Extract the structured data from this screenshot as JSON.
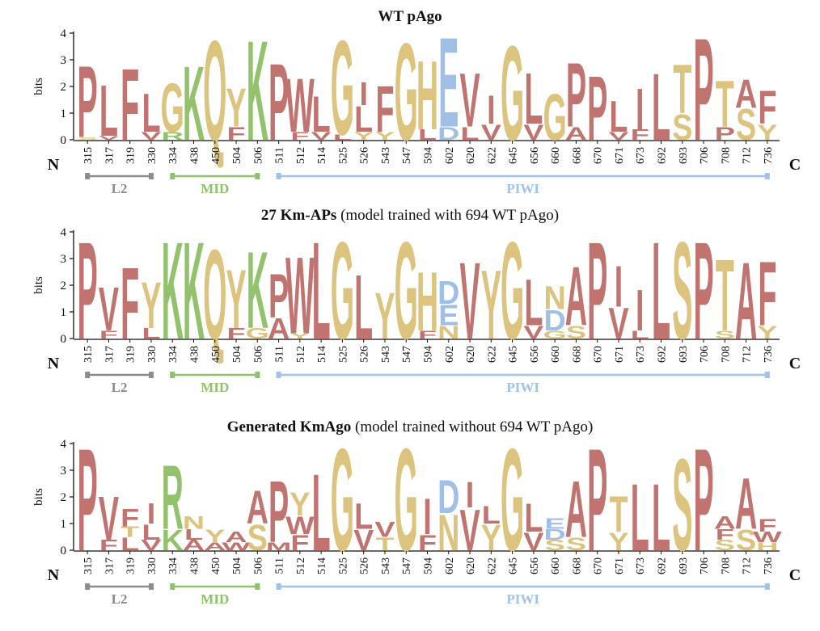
{
  "colors": {
    "P": "#c0736f",
    "L": "#c0736f",
    "F": "#c0736f",
    "V": "#c0736f",
    "I": "#c0736f",
    "W": "#c0736f",
    "A": "#c0736f",
    "M": "#c0736f",
    "G": "#dcc37e",
    "Q": "#dcc37e",
    "Y": "#dcc37e",
    "S": "#dcc37e",
    "T": "#dcc37e",
    "N": "#dcc37e",
    "H": "#dcc37e",
    "C": "#dcc37e",
    "K": "#93c26c",
    "R": "#93c26c",
    "E": "#9fbfe6",
    "D": "#9fbfe6",
    "domain_L2": "#8c8c8c",
    "domain_MID": "#8fc26a",
    "domain_PIWI": "#9fc3ea"
  },
  "positions": [
    "315",
    "317",
    "319",
    "330",
    "334",
    "438",
    "450",
    "504",
    "506",
    "511",
    "512",
    "514",
    "525",
    "526",
    "543",
    "547",
    "594",
    "602",
    "620",
    "622",
    "645",
    "656",
    "660",
    "668",
    "670",
    "671",
    "673",
    "692",
    "693",
    "706",
    "708",
    "712",
    "736"
  ],
  "axis": {
    "ylabel": "bits",
    "yticks": [
      "0",
      "1",
      "2",
      "3",
      "4"
    ],
    "n_label": "N",
    "c_label": "C"
  },
  "domains": [
    {
      "name": "L2",
      "from": 0,
      "to": 3
    },
    {
      "name": "MID",
      "from": 4,
      "to": 8
    },
    {
      "name": "PIWI",
      "from": 9,
      "to": 32
    }
  ],
  "panels": [
    {
      "title_bold": "WT pAgo",
      "title_rest": "",
      "stacks": [
        [
          [
            "S",
            0.1
          ],
          [
            "P",
            2.8
          ]
        ],
        [
          [
            "V",
            0.15
          ],
          [
            "L",
            2.0
          ]
        ],
        [
          [
            "F",
            2.8
          ]
        ],
        [
          [
            "V",
            0.3
          ],
          [
            "L",
            1.5
          ]
        ],
        [
          [
            "R",
            0.3
          ],
          [
            "G",
            1.9
          ]
        ],
        [
          [
            "K",
            2.9
          ]
        ],
        [
          [
            "Q",
            3.9
          ]
        ],
        [
          [
            "F",
            0.5
          ],
          [
            "Y",
            1.5
          ]
        ],
        [
          [
            "K",
            3.9
          ]
        ],
        [
          [
            "P",
            3.0
          ]
        ],
        [
          [
            "F",
            0.3
          ],
          [
            "W",
            2.1
          ]
        ],
        [
          [
            "V",
            0.3
          ],
          [
            "L",
            1.4
          ]
        ],
        [
          [
            "L",
            0.2
          ],
          [
            "G",
            3.7
          ]
        ],
        [
          [
            "Y",
            0.3
          ],
          [
            "L",
            1.0
          ],
          [
            "I",
            0.9
          ]
        ],
        [
          [
            "Y",
            0.3
          ],
          [
            "F",
            1.8
          ]
        ],
        [
          [
            "G",
            3.8
          ]
        ],
        [
          [
            "L",
            0.4
          ],
          [
            "H",
            2.7
          ]
        ],
        [
          [
            "D",
            0.5
          ],
          [
            "E",
            3.5
          ]
        ],
        [
          [
            "L",
            0.5
          ],
          [
            "V",
            2.1
          ]
        ],
        [
          [
            "V",
            0.6
          ],
          [
            "I",
            1.1
          ]
        ],
        [
          [
            "G",
            3.7
          ]
        ],
        [
          [
            "V",
            0.6
          ],
          [
            "L",
            2.0
          ]
        ],
        [
          [
            "G",
            1.8
          ]
        ],
        [
          [
            "A",
            0.5
          ],
          [
            "P",
            2.5
          ]
        ],
        [
          [
            "P",
            2.5
          ]
        ],
        [
          [
            "V",
            0.3
          ],
          [
            "L",
            1.2
          ]
        ],
        [
          [
            "F",
            0.4
          ],
          [
            "I",
            1.6
          ]
        ],
        [
          [
            "L",
            2.6
          ]
        ],
        [
          [
            "S",
            1.0
          ],
          [
            "T",
            1.9
          ]
        ],
        [
          [
            "P",
            4.0
          ]
        ],
        [
          [
            "P",
            0.5
          ],
          [
            "T",
            1.8
          ]
        ],
        [
          [
            "S",
            1.2
          ],
          [
            "A",
            1.1
          ]
        ],
        [
          [
            "Y",
            0.6
          ],
          [
            "F",
            1.3
          ]
        ]
      ]
    },
    {
      "title_bold": "27 Km-APs",
      "title_rest": " (model trained with 694 WT pAgo)",
      "stacks": [
        [
          [
            "P",
            3.8
          ]
        ],
        [
          [
            "F",
            0.3
          ],
          [
            "V",
            1.7
          ]
        ],
        [
          [
            "F",
            2.8
          ]
        ],
        [
          [
            "L",
            0.4
          ],
          [
            "Y",
            1.8
          ]
        ],
        [
          [
            "K",
            3.8
          ]
        ],
        [
          [
            "K",
            3.8
          ]
        ],
        [
          [
            "Q",
            3.5
          ]
        ],
        [
          [
            "F",
            0.4
          ],
          [
            "Y",
            2.3
          ]
        ],
        [
          [
            "G",
            0.4
          ],
          [
            "K",
            3.0
          ]
        ],
        [
          [
            "A",
            0.8
          ],
          [
            "P",
            1.7
          ]
        ],
        [
          [
            "Y",
            0.2
          ],
          [
            "W",
            3.0
          ]
        ],
        [
          [
            "L",
            3.8
          ]
        ],
        [
          [
            "G",
            3.8
          ]
        ],
        [
          [
            "L",
            2.5
          ]
        ],
        [
          [
            "Y",
            1.8
          ]
        ],
        [
          [
            "G",
            3.8
          ]
        ],
        [
          [
            "F",
            0.3
          ],
          [
            "H",
            2.3
          ]
        ],
        [
          [
            "N",
            0.5
          ],
          [
            "E",
            0.8
          ],
          [
            "D",
            0.9
          ]
        ],
        [
          [
            "V",
            3.0
          ]
        ],
        [
          [
            "Y",
            2.7
          ]
        ],
        [
          [
            "G",
            3.8
          ]
        ],
        [
          [
            "V",
            0.5
          ],
          [
            "L",
            1.8
          ]
        ],
        [
          [
            "G",
            0.3
          ],
          [
            "D",
            0.8
          ],
          [
            "N",
            0.9
          ]
        ],
        [
          [
            "S",
            0.5
          ],
          [
            "A",
            2.3
          ]
        ],
        [
          [
            "P",
            3.8
          ]
        ],
        [
          [
            "V",
            1.2
          ],
          [
            "I",
            1.6
          ]
        ],
        [
          [
            "L",
            0.3
          ],
          [
            "I",
            1.6
          ]
        ],
        [
          [
            "L",
            3.8
          ]
        ],
        [
          [
            "S",
            3.8
          ]
        ],
        [
          [
            "P",
            3.8
          ]
        ],
        [
          [
            "S",
            0.3
          ],
          [
            "T",
            2.8
          ]
        ],
        [
          [
            "A",
            3.0
          ]
        ],
        [
          [
            "Y",
            0.5
          ],
          [
            "F",
            2.5
          ]
        ]
      ]
    },
    {
      "title_bold": "Generated KmAgo",
      "title_rest": " (model trained without 694 WT pAgo)",
      "stacks": [
        [
          [
            "P",
            4.0
          ]
        ],
        [
          [
            "F",
            0.4
          ],
          [
            "V",
            1.7
          ]
        ],
        [
          [
            "L",
            0.5
          ],
          [
            "T",
            0.4
          ],
          [
            "F",
            0.7
          ]
        ],
        [
          [
            "V",
            0.4
          ],
          [
            "L",
            0.6
          ],
          [
            "I",
            0.8
          ]
        ],
        [
          [
            "K",
            0.8
          ],
          [
            "R",
            2.5
          ]
        ],
        [
          [
            "A",
            0.4
          ],
          [
            "L",
            0.4
          ],
          [
            "N",
            0.5
          ]
        ],
        [
          [
            "A",
            0.3
          ],
          [
            "Y",
            0.5
          ]
        ],
        [
          [
            "W",
            0.3
          ],
          [
            "A",
            0.4
          ]
        ],
        [
          [
            "S",
            1.0
          ],
          [
            "A",
            1.3
          ]
        ],
        [
          [
            "M",
            0.3
          ],
          [
            "P",
            2.4
          ]
        ],
        [
          [
            "F",
            0.6
          ],
          [
            "W",
            0.7
          ],
          [
            "Y",
            0.9
          ]
        ],
        [
          [
            "L",
            3.0
          ]
        ],
        [
          [
            "G",
            4.0
          ]
        ],
        [
          [
            "V",
            0.8
          ],
          [
            "L",
            1.0
          ]
        ],
        [
          [
            "T",
            0.5
          ],
          [
            "V",
            0.6
          ]
        ],
        [
          [
            "G",
            4.0
          ]
        ],
        [
          [
            "F",
            0.6
          ],
          [
            "I",
            1.4
          ]
        ],
        [
          [
            "N",
            1.4
          ],
          [
            "D",
            1.3
          ]
        ],
        [
          [
            "V",
            1.6
          ],
          [
            "I",
            1.0
          ]
        ],
        [
          [
            "Y",
            1.0
          ],
          [
            "L",
            0.7
          ]
        ],
        [
          [
            "G",
            4.0
          ]
        ],
        [
          [
            "V",
            0.7
          ],
          [
            "L",
            1.1
          ]
        ],
        [
          [
            "S",
            0.4
          ],
          [
            "D",
            0.4
          ],
          [
            "E",
            0.4
          ]
        ],
        [
          [
            "S",
            0.5
          ],
          [
            "A",
            2.2
          ]
        ],
        [
          [
            "P",
            4.0
          ]
        ],
        [
          [
            "Y",
            0.7
          ],
          [
            "T",
            1.4
          ]
        ],
        [
          [
            "L",
            2.6
          ]
        ],
        [
          [
            "L",
            2.6
          ]
        ],
        [
          [
            "S",
            3.6
          ]
        ],
        [
          [
            "P",
            4.0
          ]
        ],
        [
          [
            "S",
            0.4
          ],
          [
            "F",
            0.4
          ],
          [
            "A",
            0.5
          ]
        ],
        [
          [
            "S",
            0.8
          ],
          [
            "A",
            2.0
          ]
        ],
        [
          [
            "H",
            0.3
          ],
          [
            "W",
            0.4
          ],
          [
            "F",
            0.5
          ]
        ]
      ]
    }
  ]
}
